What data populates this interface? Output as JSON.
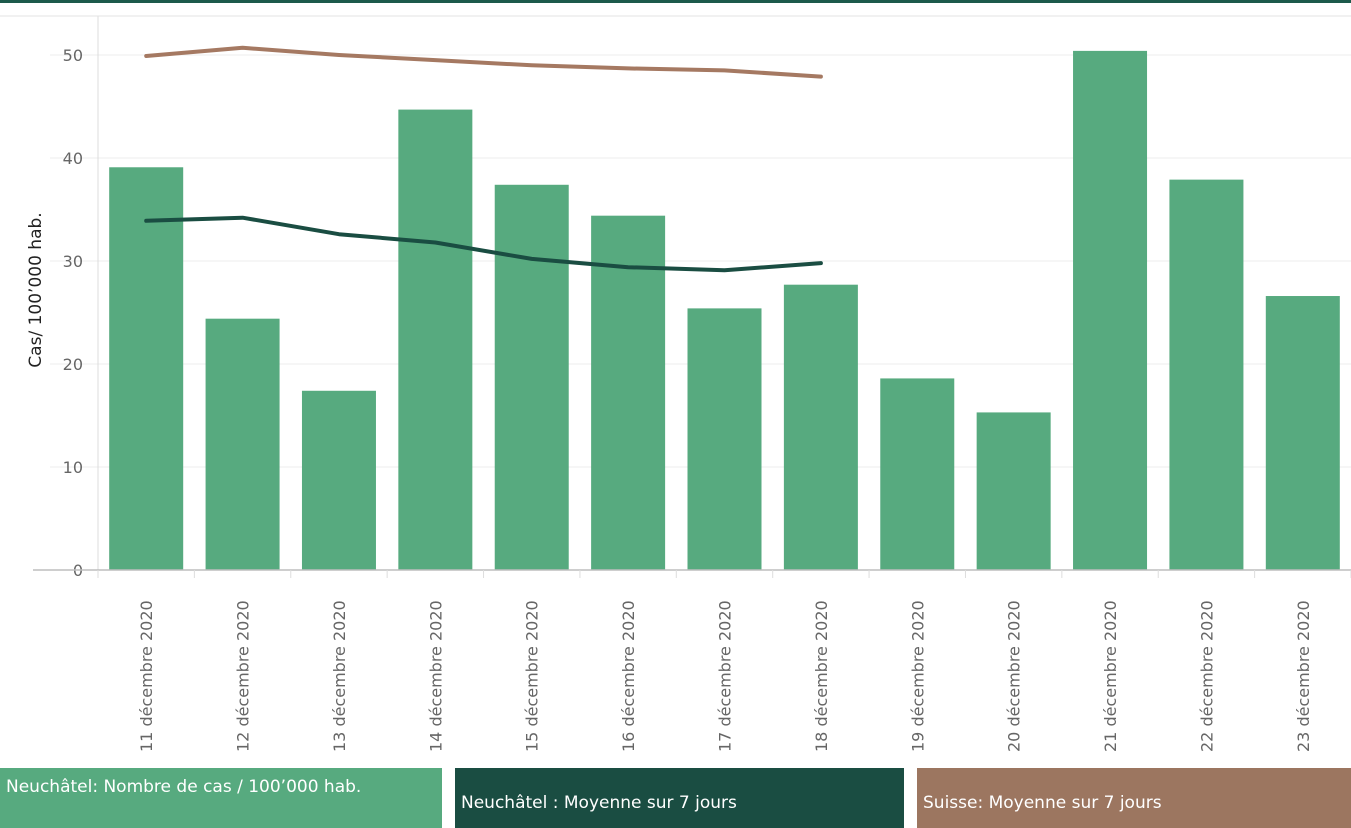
{
  "colors": {
    "bar": "#57aa7f",
    "neuchatel_avg_line": "#1a4d42",
    "suisse_avg_line": "#a57962",
    "top_bar": "#1d5a4b",
    "grid": "#ececec",
    "axis_text": "#666666"
  },
  "legend": {
    "neuchatel_cases": "Neuchâtel: Nombre de cas / 100’000 hab.",
    "neuchatel_avg": "Neuchâtel : Moyenne sur 7 jours",
    "suisse_avg": "Suisse: Moyenne sur 7 jours"
  },
  "chart_data": {
    "type": "bar",
    "ylabel": "Cas/ 100’000 hab.",
    "ylim": [
      0,
      53
    ],
    "yticks": [
      0,
      10,
      20,
      30,
      40,
      50
    ],
    "grid": true,
    "categories": [
      "11 décembre 2020",
      "12 décembre 2020",
      "13 décembre 2020",
      "14 décembre 2020",
      "15 décembre 2020",
      "16 décembre 2020",
      "17 décembre 2020",
      "18 décembre 2020",
      "19 décembre 2020",
      "20 décembre 2020",
      "21 décembre 2020",
      "22 décembre 2020",
      "23 décembre 2020"
    ],
    "series": [
      {
        "name": "Neuchâtel: Nombre de cas / 100’000 hab.",
        "kind": "bar",
        "values": [
          39.1,
          24.4,
          17.4,
          44.7,
          37.4,
          34.4,
          25.4,
          27.7,
          18.6,
          15.3,
          50.4,
          37.9,
          26.6
        ]
      },
      {
        "name": "Neuchâtel : Moyenne sur 7 jours",
        "kind": "line",
        "values": [
          33.9,
          34.2,
          32.6,
          31.8,
          30.2,
          29.4,
          29.1,
          29.8,
          null,
          null,
          null,
          null,
          null
        ]
      },
      {
        "name": "Suisse: Moyenne sur 7 jours",
        "kind": "line",
        "values": [
          49.9,
          50.7,
          50.0,
          49.5,
          49.0,
          48.7,
          48.5,
          47.9,
          null,
          null,
          null,
          null,
          null
        ]
      }
    ]
  }
}
